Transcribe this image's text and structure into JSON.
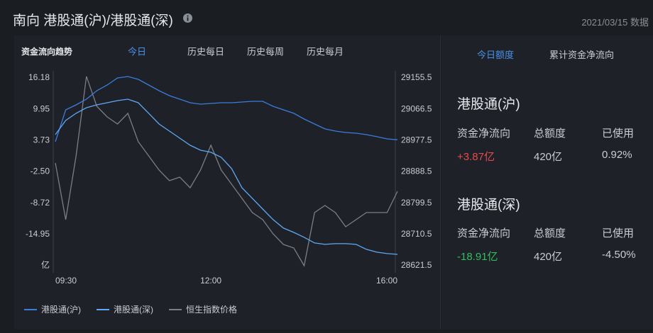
{
  "header": {
    "title": "南向 港股通(沪)/港股通(深)",
    "date": "2021/03/15 数据"
  },
  "tabs": [
    "今日",
    "历史每日",
    "历史每周",
    "历史每月"
  ],
  "side_panel": {
    "tabs": [
      "今日额度",
      "累计资金净流向"
    ],
    "sections": [
      {
        "title": "港股通(沪)",
        "headers": [
          "资金净流向",
          "总额度",
          "已使用"
        ],
        "values": [
          "+3.87亿",
          "420亿",
          "0.92%"
        ]
      },
      {
        "title": "港股通(深)",
        "headers": [
          "资金净流向",
          "总额度",
          "已使用"
        ],
        "values": [
          "-18.91亿",
          "420亿",
          "-4.50%"
        ]
      }
    ]
  },
  "chart_data": {
    "type": "line",
    "title": "资金流向趋势",
    "categories": [
      "09:30",
      null,
      null,
      null,
      null,
      null,
      null,
      null,
      null,
      null,
      null,
      null,
      null,
      null,
      null,
      "12:00",
      null,
      null,
      null,
      null,
      null,
      null,
      null,
      null,
      null,
      null,
      null,
      null,
      null,
      null,
      null,
      null,
      null,
      "16:00"
    ],
    "series": [
      {
        "name": "港股通(沪)",
        "color": "#3b7ddd",
        "values": [
          3.5,
          9.84,
          10.83,
          11.95,
          13.64,
          14.77,
          16.18,
          16.46,
          15.9,
          14.77,
          13.64,
          12.66,
          11.95,
          11.25,
          10.97,
          11.11,
          11.25,
          11.25,
          11.39,
          11.53,
          11.53,
          10.54,
          9.84,
          9.14,
          8.01,
          7.02,
          6.04,
          5.61,
          5.33,
          5.19,
          4.91,
          4.49,
          4.06,
          3.87
        ]
      },
      {
        "name": "港股通(深)",
        "color": "#5ea8f4",
        "values": [
          4.91,
          7.73,
          9.14,
          10.26,
          10.83,
          11.25,
          11.67,
          11.95,
          11.25,
          9.14,
          7.02,
          5.61,
          4.2,
          2.79,
          1.81,
          1.39,
          0.4,
          -1.85,
          -5.66,
          -7.77,
          -9.89,
          -12.0,
          -13.69,
          -14.54,
          -15.52,
          -16.65,
          -16.93,
          -16.79,
          -16.79,
          -16.93,
          -17.92,
          -18.48,
          -18.76,
          -18.91
        ]
      },
      {
        "name": "恒生指数价格",
        "color": "#7a7e85",
        "axis": "y2",
        "values": [
          28913.7,
          28752.5,
          28933.8,
          29160.0,
          29074.9,
          29044.7,
          29024.5,
          29054.7,
          28974.1,
          28933.8,
          28893.5,
          28863.3,
          28873.4,
          28843.2,
          28893.5,
          28964.1,
          28893.5,
          28853.2,
          28812.9,
          28772.6,
          28752.5,
          28712.2,
          28682.0,
          28671.9,
          28621.5,
          28772.6,
          28792.8,
          28772.6,
          28732.3,
          28752.5,
          28772.6,
          28772.6,
          28772.6,
          28833.1
        ]
      }
    ],
    "ylim": [
      -21.17,
      16.18
    ],
    "yticks": [
      16.18,
      9.95,
      3.73,
      {
        "value": -2.5,
        "label": "-2.50"
      },
      -8.72,
      -14.95,
      {
        "value": -21.17,
        "label": "亿"
      }
    ],
    "y2lim": [
      28621.5,
      29155.5
    ],
    "y2ticks": [
      29155.5,
      29066.5,
      28977.5,
      28888.5,
      28799.5,
      28710.5,
      28621.5
    ],
    "grid": false,
    "legend": "bottom-left"
  }
}
